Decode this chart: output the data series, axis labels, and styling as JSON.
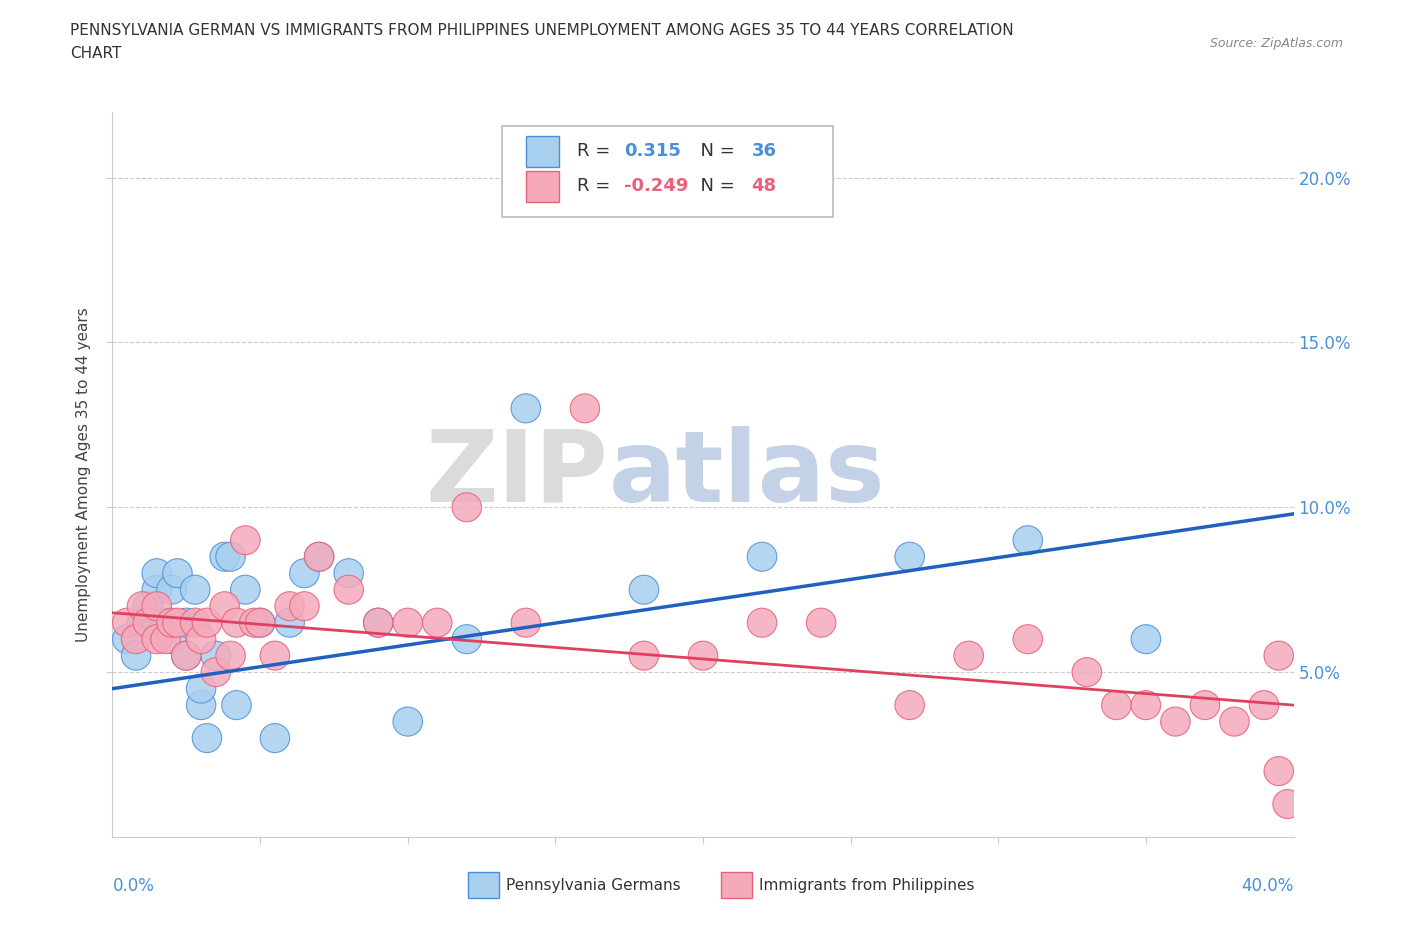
{
  "title_line1": "PENNSYLVANIA GERMAN VS IMMIGRANTS FROM PHILIPPINES UNEMPLOYMENT AMONG AGES 35 TO 44 YEARS CORRELATION",
  "title_line2": "CHART",
  "source_text": "Source: ZipAtlas.com",
  "ylabel": "Unemployment Among Ages 35 to 44 years",
  "x_min": 0.0,
  "x_max": 0.4,
  "y_min": 0.0,
  "y_max": 0.22,
  "blue_R": "0.315",
  "blue_N": "36",
  "pink_R": "-0.249",
  "pink_N": "48",
  "blue_fill": "#A8CFEE",
  "pink_fill": "#F4AABB",
  "blue_edge": "#4A90D9",
  "pink_edge": "#E8607A",
  "blue_line": "#2060C0",
  "pink_line": "#E04060",
  "tick_color": "#4A90D9",
  "grid_color": "#CCCCCC",
  "blue_scatter_x": [
    0.005,
    0.008,
    0.01,
    0.012,
    0.015,
    0.015,
    0.018,
    0.02,
    0.02,
    0.022,
    0.025,
    0.025,
    0.028,
    0.03,
    0.03,
    0.032,
    0.035,
    0.038,
    0.04,
    0.042,
    0.045,
    0.05,
    0.055,
    0.06,
    0.065,
    0.07,
    0.08,
    0.09,
    0.1,
    0.12,
    0.14,
    0.18,
    0.22,
    0.27,
    0.31,
    0.35
  ],
  "blue_scatter_y": [
    0.06,
    0.055,
    0.065,
    0.07,
    0.075,
    0.08,
    0.065,
    0.06,
    0.075,
    0.08,
    0.055,
    0.065,
    0.075,
    0.04,
    0.045,
    0.03,
    0.055,
    0.085,
    0.085,
    0.04,
    0.075,
    0.065,
    0.03,
    0.065,
    0.08,
    0.085,
    0.08,
    0.065,
    0.035,
    0.06,
    0.13,
    0.075,
    0.085,
    0.085,
    0.09,
    0.06
  ],
  "pink_scatter_x": [
    0.005,
    0.008,
    0.01,
    0.012,
    0.015,
    0.015,
    0.018,
    0.02,
    0.022,
    0.025,
    0.028,
    0.03,
    0.032,
    0.035,
    0.038,
    0.04,
    0.042,
    0.045,
    0.048,
    0.05,
    0.055,
    0.06,
    0.065,
    0.07,
    0.08,
    0.09,
    0.1,
    0.11,
    0.12,
    0.14,
    0.16,
    0.18,
    0.2,
    0.22,
    0.24,
    0.27,
    0.29,
    0.31,
    0.33,
    0.34,
    0.35,
    0.36,
    0.37,
    0.38,
    0.39,
    0.395,
    0.395,
    0.398
  ],
  "pink_scatter_y": [
    0.065,
    0.06,
    0.07,
    0.065,
    0.06,
    0.07,
    0.06,
    0.065,
    0.065,
    0.055,
    0.065,
    0.06,
    0.065,
    0.05,
    0.07,
    0.055,
    0.065,
    0.09,
    0.065,
    0.065,
    0.055,
    0.07,
    0.07,
    0.085,
    0.075,
    0.065,
    0.065,
    0.065,
    0.1,
    0.065,
    0.13,
    0.055,
    0.055,
    0.065,
    0.065,
    0.04,
    0.055,
    0.06,
    0.05,
    0.04,
    0.04,
    0.035,
    0.04,
    0.035,
    0.04,
    0.02,
    0.055,
    0.01
  ]
}
